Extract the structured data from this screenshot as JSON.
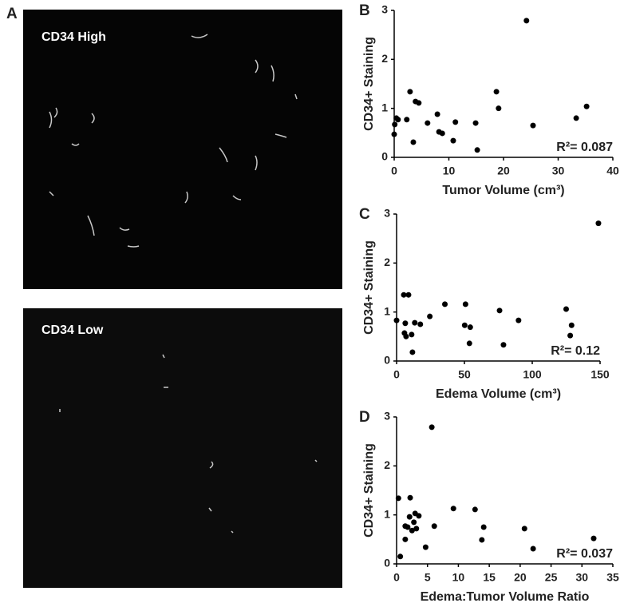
{
  "panel_a": {
    "label": "A",
    "images": [
      {
        "label": "CD34 High"
      },
      {
        "label": "CD34 Low"
      }
    ]
  },
  "chart_data": [
    {
      "type": "scatter",
      "panel": "B",
      "y_label": "CD34+ Staining",
      "x_label": "Tumor Volume (cm³)",
      "annotation": "R²= 0.087",
      "color": "#000000",
      "x": [
        0,
        0.1,
        0.4,
        0.7,
        2.3,
        2.9,
        3.5,
        3.9,
        4.5,
        6.1,
        7.9,
        8.2,
        8.8,
        10.8,
        11.2,
        14.9,
        15.2,
        18.7,
        19.1,
        24.2,
        25.4,
        33.3,
        35.2
      ],
      "values": [
        0.47,
        0.67,
        0.8,
        0.77,
        0.77,
        1.34,
        0.31,
        1.14,
        1.11,
        0.7,
        0.88,
        0.52,
        0.49,
        0.34,
        0.72,
        0.7,
        0.15,
        1.34,
        1.0,
        2.79,
        0.65,
        0.8,
        1.04
      ],
      "xlim": [
        0,
        40
      ],
      "xticks": [
        0,
        10,
        20,
        30,
        40
      ],
      "ylim": [
        0,
        3
      ],
      "yticks": [
        0,
        1,
        2,
        3
      ]
    },
    {
      "type": "scatter",
      "panel": "C",
      "y_label": "CD34+ Staining",
      "x_label": "Edema Volume (cm³)",
      "annotation": "R²= 0.12",
      "color": "#000000",
      "x": [
        0,
        5.3,
        8.8,
        5.8,
        6.4,
        7,
        11.1,
        11.7,
        13.4,
        17.5,
        24.5,
        35.6,
        50.8,
        50.2,
        54.3,
        53.7,
        75.9,
        78.8,
        89.9,
        125,
        128,
        129,
        148.8
      ],
      "values": [
        0.83,
        1.35,
        1.35,
        0.57,
        0.77,
        0.5,
        0.54,
        0.18,
        0.78,
        0.75,
        0.91,
        1.16,
        1.16,
        0.73,
        0.69,
        0.36,
        1.03,
        0.33,
        0.83,
        1.06,
        0.52,
        0.73,
        2.81
      ],
      "xlim": [
        0,
        150
      ],
      "xticks": [
        0,
        50,
        100,
        150
      ],
      "ylim": [
        0,
        3
      ],
      "yticks": [
        0,
        1,
        2,
        3
      ]
    },
    {
      "type": "scatter",
      "panel": "D",
      "y_label": "CD34+ Staining",
      "x_label": "Edema:Tumor Volume Ratio",
      "annotation": "R²= 0.037",
      "color": "#000000",
      "x": [
        0.3,
        0.6,
        1.4,
        1.8,
        2.1,
        2.2,
        1.4,
        2.5,
        2.8,
        3,
        3.2,
        3.6,
        4.7,
        5.7,
        6.1,
        9.2,
        12.7,
        14.1,
        13.8,
        20.7,
        22.1,
        31.9
      ],
      "values": [
        1.34,
        0.15,
        0.77,
        0.75,
        0.96,
        1.35,
        0.5,
        0.68,
        0.85,
        1.03,
        0.72,
        0.98,
        0.34,
        2.79,
        0.77,
        1.13,
        1.11,
        0.75,
        0.49,
        0.72,
        0.31,
        0.52
      ],
      "xlim": [
        0,
        35
      ],
      "xticks": [
        0,
        5,
        10,
        15,
        20,
        25,
        30,
        35
      ],
      "ylim": [
        0,
        3
      ],
      "yticks": [
        0,
        1,
        2,
        3
      ]
    }
  ]
}
